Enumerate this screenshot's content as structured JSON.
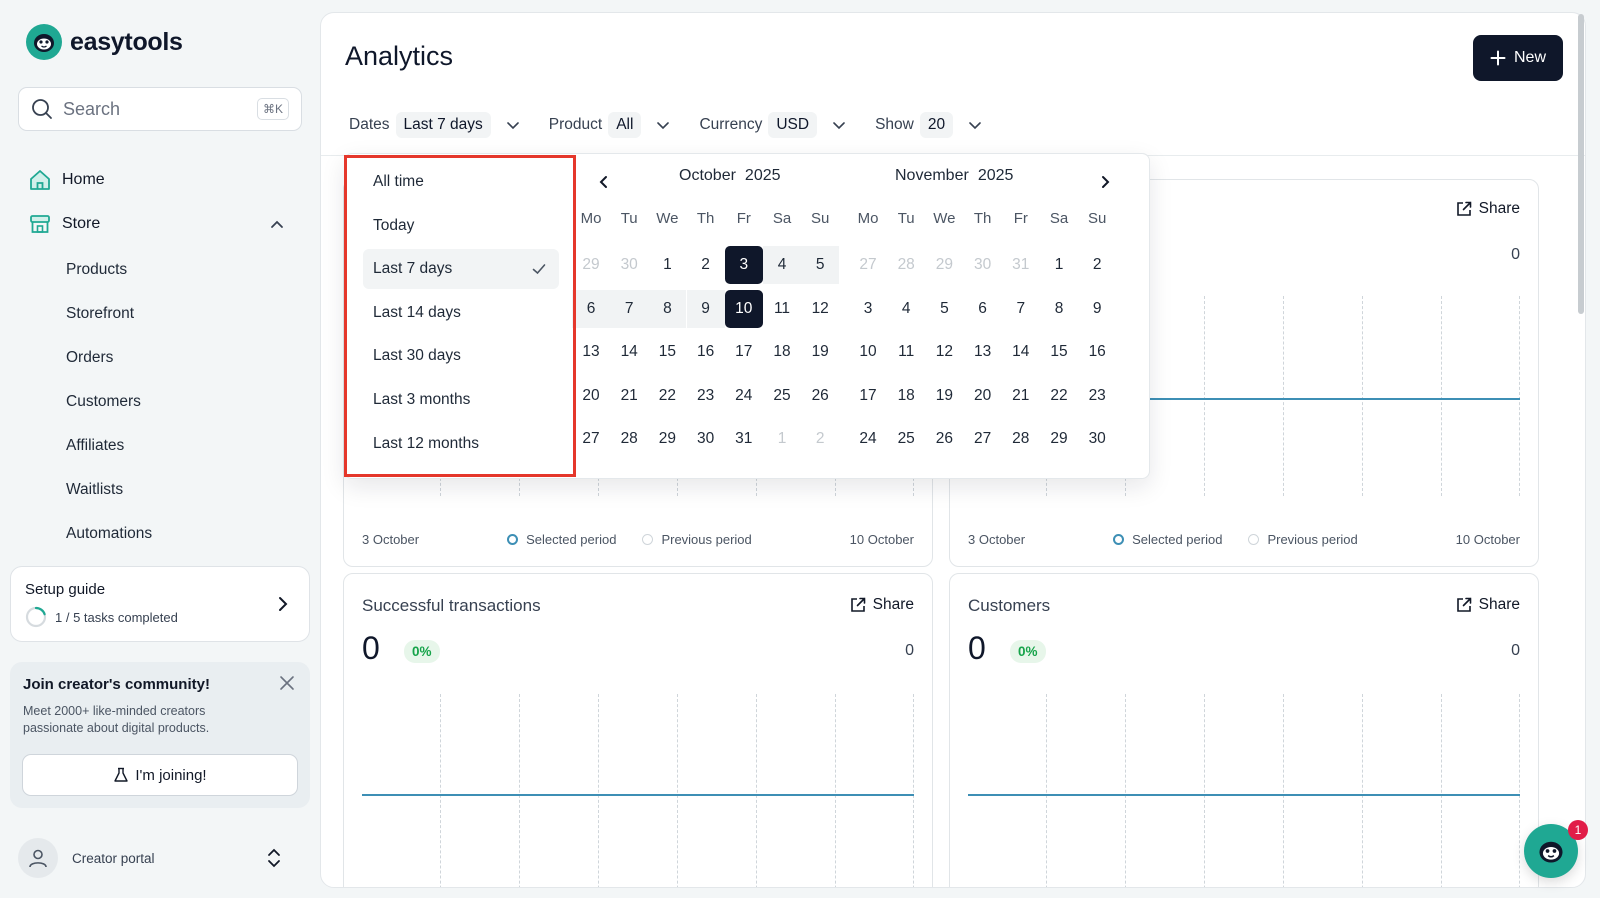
{
  "brand": {
    "name": "easytools",
    "accent": "#1fa893",
    "dark": "#0f172a"
  },
  "search": {
    "placeholder": "Search",
    "shortcut": "⌘K"
  },
  "sidebar": {
    "home": "Home",
    "store": "Store",
    "store_items": [
      "Products",
      "Storefront",
      "Orders",
      "Customers",
      "Affiliates",
      "Waitlists",
      "Automations"
    ],
    "setup": {
      "title": "Setup guide",
      "progress": "1 / 5 tasks completed",
      "completed": 1,
      "total": 5
    },
    "community": {
      "title": "Join creator's community!",
      "description": "Meet 2000+ like-minded creators passionate about digital products.",
      "button": "I'm joining!"
    },
    "portal": "Creator portal"
  },
  "header": {
    "title": "Analytics",
    "new_button": "New"
  },
  "filters": {
    "dates": {
      "label": "Dates",
      "value": "Last 7 days"
    },
    "product": {
      "label": "Product",
      "value": "All"
    },
    "currency": {
      "label": "Currency",
      "value": "USD"
    },
    "show": {
      "label": "Show",
      "value": "20"
    }
  },
  "date_picker": {
    "presets": [
      "All time",
      "Today",
      "Last 7 days",
      "Last 14 days",
      "Last 30 days",
      "Last 3 months",
      "Last 12 months"
    ],
    "active_preset": "Last 7 days",
    "weekdays": [
      "Mo",
      "Tu",
      "We",
      "Th",
      "Fr",
      "Sa",
      "Su"
    ],
    "months": [
      {
        "name": "October",
        "year": "2025",
        "weeks": [
          [
            "29",
            "30",
            "1",
            "2",
            "3",
            "4",
            "5"
          ],
          [
            "6",
            "7",
            "8",
            "9",
            "10",
            "11",
            "12"
          ],
          [
            "13",
            "14",
            "15",
            "16",
            "17",
            "18",
            "19"
          ],
          [
            "20",
            "21",
            "22",
            "23",
            "24",
            "25",
            "26"
          ],
          [
            "27",
            "28",
            "29",
            "30",
            "31",
            "1",
            "2"
          ]
        ]
      },
      {
        "name": "November",
        "year": "2025",
        "weeks": [
          [
            "27",
            "28",
            "29",
            "30",
            "31",
            "1",
            "2"
          ],
          [
            "3",
            "4",
            "5",
            "6",
            "7",
            "8",
            "9"
          ],
          [
            "10",
            "11",
            "12",
            "13",
            "14",
            "15",
            "16"
          ],
          [
            "17",
            "18",
            "19",
            "20",
            "21",
            "22",
            "23"
          ],
          [
            "24",
            "25",
            "26",
            "27",
            "28",
            "29",
            "30"
          ]
        ]
      }
    ],
    "range_start": "3",
    "range_end": "10"
  },
  "cards": {
    "top_left": {
      "start": "3 October",
      "end": "10 October",
      "selected": "Selected period",
      "previous": "Previous period"
    },
    "top_right": {
      "share": "Share",
      "right_value": "0",
      "start": "3 October",
      "end": "10 October",
      "selected": "Selected period",
      "previous": "Previous period"
    },
    "transactions": {
      "title": "Successful transactions",
      "share": "Share",
      "value": "0",
      "change": "0%",
      "right_value": "0"
    },
    "customers": {
      "title": "Customers",
      "share": "Share",
      "value": "0",
      "change": "0%",
      "right_value": "0"
    }
  },
  "chat": {
    "badge": "1"
  }
}
